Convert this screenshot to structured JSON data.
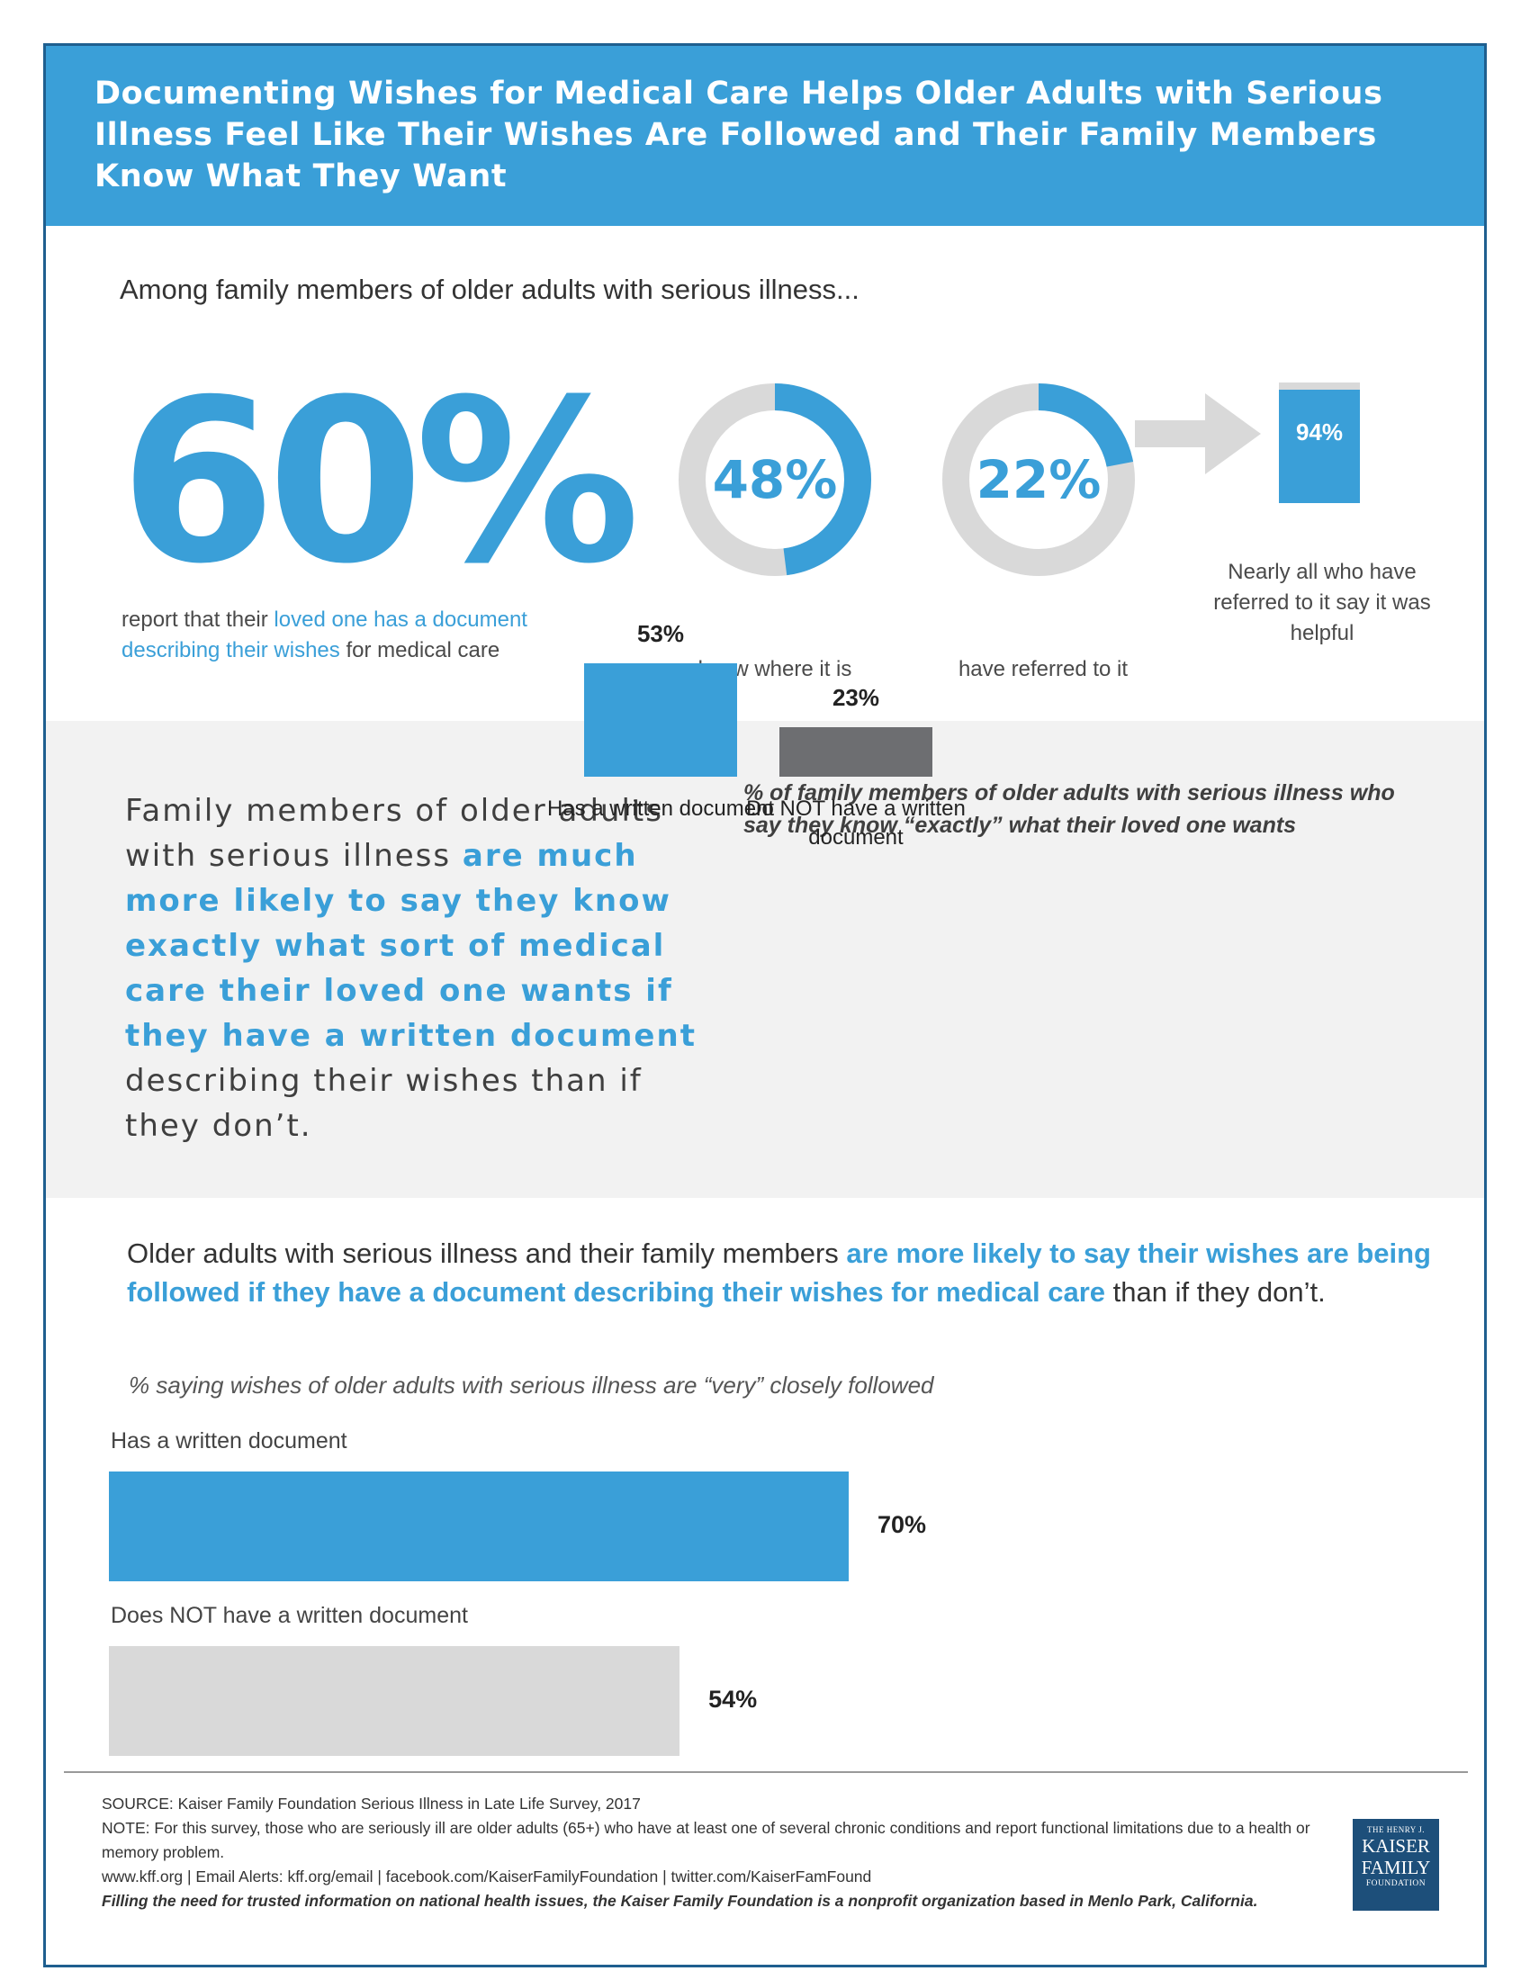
{
  "header": {
    "title": "Documenting Wishes for Medical Care Helps Older Adults with Serious Illness Feel Like Their Wishes Are Followed and Their Family Members Know What They Want"
  },
  "section1": {
    "intro": "Among family members of older adults with serious illness...",
    "big_stat": {
      "value": "60%",
      "desc_pre": "report that their ",
      "desc_highlight": "loved one has a document describing their wishes",
      "desc_post": " for medical care"
    },
    "donuts": [
      {
        "label": "48%",
        "value": 48,
        "caption": "know where it is"
      },
      {
        "label": "22%",
        "value": 22,
        "caption": "have referred to it"
      }
    ],
    "helpful": {
      "label": "94%",
      "value": 94,
      "caption": "Nearly all who have referred to it say it was helpful"
    }
  },
  "section2": {
    "text_pre": "Family members of older adults with serious illness ",
    "text_highlight": "are much more likely to say they know exactly what sort of medical care their loved one wants if they have a written document",
    "text_post": " describing their wishes than if they don’t.",
    "chart_title": "% of family members of older adults with serious illness who say they know “exactly” what their loved one wants"
  },
  "section3": {
    "text_pre": "Older adults with serious illness and their family members ",
    "text_highlight": "are more likely to say their wishes are being followed if they have a document describing their wishes for medical care",
    "text_post": " than if they don’t.",
    "subtitle": "% saying wishes of older adults with serious illness are “very” closely followed"
  },
  "chart_data": [
    {
      "type": "pie",
      "title": "",
      "categories": [
        "know where it is"
      ],
      "values": [
        48
      ]
    },
    {
      "type": "pie",
      "title": "",
      "categories": [
        "have referred to it"
      ],
      "values": [
        22
      ]
    },
    {
      "type": "bar",
      "title": "",
      "categories": [
        "Nearly all who have referred to it say it was helpful"
      ],
      "values": [
        94
      ],
      "ylim": [
        0,
        100
      ]
    },
    {
      "type": "bar",
      "title": "% of family members of older adults with serious illness who say they know “exactly” what their loved one wants",
      "categories": [
        "Has a written document",
        "Do NOT have a written  document"
      ],
      "values": [
        53,
        23
      ],
      "value_labels": [
        "53%",
        "23%"
      ],
      "colors": [
        "#3a9fd8",
        "#6d6e71"
      ],
      "ylim": [
        0,
        100
      ]
    },
    {
      "type": "bar",
      "orientation": "horizontal",
      "title": "% saying wishes of older adults with serious illness are “very” closely followed",
      "categories": [
        "Has a written document",
        "Does NOT have a written document"
      ],
      "values": [
        70,
        54
      ],
      "value_labels": [
        "70%",
        "54%"
      ],
      "colors": [
        "#3a9fd8",
        "#d9d9d9"
      ],
      "xlim": [
        0,
        100
      ]
    }
  ],
  "footer": {
    "source": "SOURCE: Kaiser Family Foundation Serious Illness in Late Life Survey, 2017",
    "note": "NOTE: For this survey, those who are seriously ill are older adults (65+) who have at least one of several chronic conditions and report functional limitations due to a health or memory problem.",
    "links": "www.kff.org | Email Alerts: kff.org/email | facebook.com/KaiserFamilyFoundation | twitter.com/KaiserFamFound",
    "tagline": "Filling the need for trusted information on national health issues, the Kaiser Family Foundation is a nonprofit organization based in Menlo Park, California.",
    "logo": {
      "line1": "THE HENRY J.",
      "line2": "KAISER",
      "line3": "FAMILY",
      "line4": "FOUNDATION"
    }
  },
  "colors": {
    "accent": "#3a9fd8",
    "dark_bar": "#6d6e71",
    "light_bar": "#d9d9d9",
    "band": "#f2f2f2"
  }
}
